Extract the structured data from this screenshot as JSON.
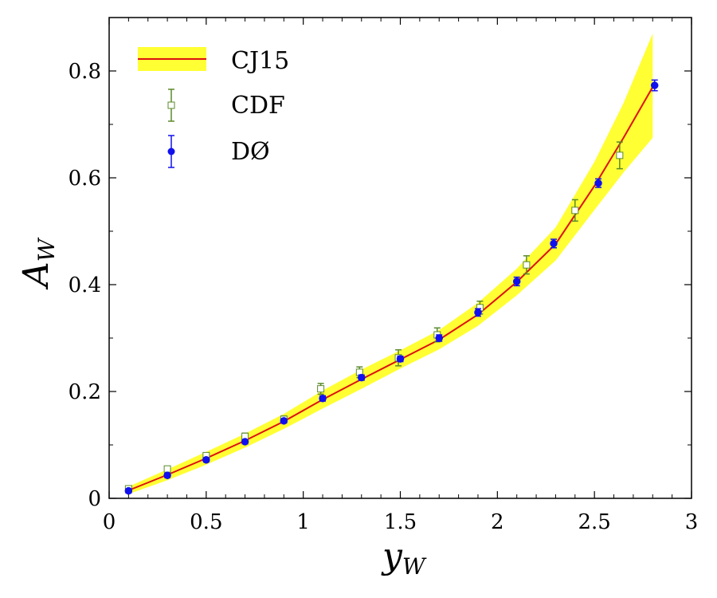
{
  "chart_data": {
    "type": "scatter",
    "xlabel": "y",
    "xlabel_sub": "W",
    "ylabel": "A",
    "ylabel_sub": "W",
    "xlim": [
      0,
      3
    ],
    "ylim": [
      0,
      0.9
    ],
    "xticks": [
      0,
      0.5,
      1,
      1.5,
      2,
      2.5,
      3
    ],
    "xtick_labels": [
      "0",
      "0.5",
      "1",
      "1.5",
      "2",
      "2.5",
      "3"
    ],
    "yticks": [
      0,
      0.2,
      0.4,
      0.6,
      0.8
    ],
    "ytick_labels": [
      "0",
      "0.2",
      "0.4",
      "0.6",
      "0.8"
    ],
    "grid": false,
    "legend": {
      "placement": "top-left",
      "entries": [
        "CJ15",
        "CDF",
        "DØ"
      ]
    },
    "colors": {
      "band": "#ffff33",
      "curve": "#dd1111",
      "cdf": "#5a8a2a",
      "d0": "#1010ee"
    },
    "series": [
      {
        "name": "CJ15",
        "kind": "curve_with_band",
        "x": [
          0.1,
          0.3,
          0.5,
          0.7,
          0.9,
          1.1,
          1.3,
          1.5,
          1.7,
          1.9,
          2.1,
          2.3,
          2.5,
          2.65,
          2.8
        ],
        "y": [
          0.015,
          0.044,
          0.075,
          0.108,
          0.144,
          0.185,
          0.223,
          0.26,
          0.297,
          0.344,
          0.405,
          0.476,
          0.585,
          0.675,
          0.77
        ],
        "low": [
          0.008,
          0.034,
          0.063,
          0.095,
          0.13,
          0.168,
          0.205,
          0.243,
          0.279,
          0.323,
          0.38,
          0.445,
          0.54,
          0.61,
          0.675
        ],
        "high": [
          0.022,
          0.054,
          0.087,
          0.121,
          0.158,
          0.202,
          0.241,
          0.277,
          0.315,
          0.366,
          0.43,
          0.507,
          0.63,
          0.74,
          0.87
        ]
      },
      {
        "name": "CDF",
        "kind": "points",
        "x": [
          0.1,
          0.3,
          0.5,
          0.7,
          0.9,
          1.09,
          1.29,
          1.49,
          1.69,
          1.91,
          2.15,
          2.4,
          2.63
        ],
        "y": [
          0.018,
          0.055,
          0.08,
          0.116,
          0.148,
          0.205,
          0.236,
          0.263,
          0.306,
          0.357,
          0.437,
          0.539,
          0.642
        ],
        "err": [
          0.005,
          0.005,
          0.005,
          0.006,
          0.006,
          0.01,
          0.01,
          0.015,
          0.013,
          0.012,
          0.017,
          0.02,
          0.025
        ]
      },
      {
        "name": "DØ",
        "kind": "points",
        "x": [
          0.1,
          0.3,
          0.5,
          0.7,
          0.9,
          1.1,
          1.3,
          1.5,
          1.7,
          1.9,
          2.1,
          2.29,
          2.52,
          2.81
        ],
        "y": [
          0.014,
          0.043,
          0.072,
          0.106,
          0.145,
          0.187,
          0.226,
          0.261,
          0.3,
          0.348,
          0.406,
          0.477,
          0.59,
          0.773
        ],
        "err": [
          0.004,
          0.004,
          0.004,
          0.004,
          0.004,
          0.005,
          0.005,
          0.005,
          0.006,
          0.007,
          0.008,
          0.008,
          0.008,
          0.01
        ]
      }
    ]
  }
}
